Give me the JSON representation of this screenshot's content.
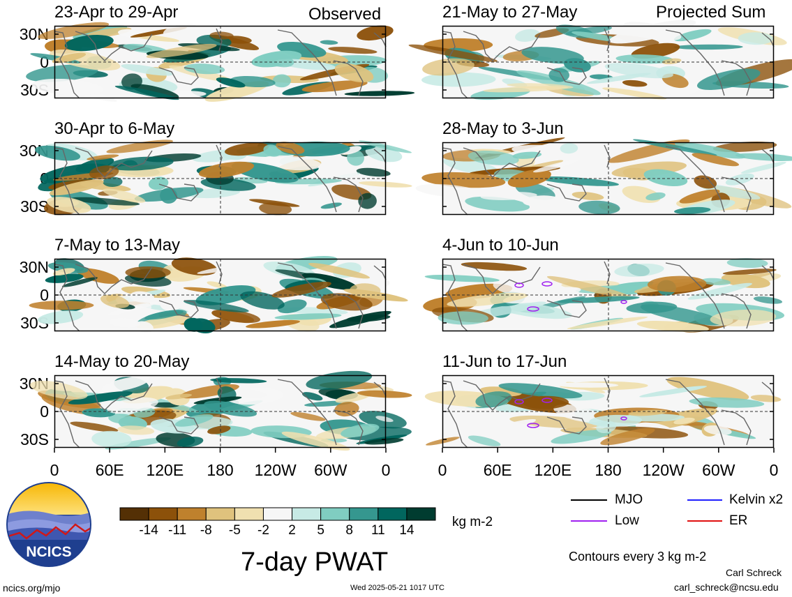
{
  "page": {
    "tags": {
      "left": "Observed",
      "right": "Projected Sum"
    },
    "lat_labels": [
      "30N",
      "0",
      "30S"
    ],
    "lon_labels": [
      "0",
      "60E",
      "120E",
      "180",
      "120W",
      "60W",
      "0"
    ],
    "title": "7-day PWAT",
    "units": "kg m-2",
    "contour_note": "Contours every 3 kg m-2",
    "footer_left": "ncics.org/mjo",
    "footer_center": "Wed 2025-05-21 1017 UTC",
    "author": "Carl Schreck",
    "email": "carl_schreck@ncsu.edu",
    "logo_text": "NCICS"
  },
  "legend": {
    "items": [
      {
        "label": "MJO",
        "color": "#000000"
      },
      {
        "label": "Kelvin x2",
        "color": "#1f1fff"
      },
      {
        "label": "Low",
        "color": "#a020f0"
      },
      {
        "label": "ER",
        "color": "#e01010"
      }
    ]
  },
  "chart_data": {
    "type": "heatmap",
    "variable": "7-day PWAT anomaly",
    "units": "kg m-2",
    "x_axis": {
      "ticks": [
        "0",
        "60E",
        "120E",
        "180",
        "120W",
        "60W",
        "0"
      ]
    },
    "y_axis": {
      "ticks": [
        "30N",
        "0",
        "30S"
      ]
    },
    "colorbar": {
      "labels": [
        "-14",
        "-11",
        "-8",
        "-5",
        "-2",
        "2",
        "5",
        "8",
        "11",
        "14"
      ],
      "colors": [
        "#543005",
        "#8c510a",
        "#bf812d",
        "#dfc27d",
        "#f0e0b0",
        "#f6f6f6",
        "#c7eae5",
        "#80cdc1",
        "#35978f",
        "#01665e",
        "#003c30"
      ]
    },
    "panels": [
      {
        "title": "23-Apr to 29-Apr",
        "column": "Observed",
        "seed": 11
      },
      {
        "title": "30-Apr to 6-May",
        "column": "Observed",
        "seed": 23
      },
      {
        "title": "7-May to 13-May",
        "column": "Observed",
        "seed": 37
      },
      {
        "title": "14-May to 20-May",
        "column": "Observed",
        "seed": 41
      },
      {
        "title": "21-May to 27-May",
        "column": "Projected Sum",
        "seed": 53
      },
      {
        "title": "28-May to 3-Jun",
        "column": "Projected Sum",
        "seed": 67
      },
      {
        "title": "4-Jun to 10-Jun",
        "column": "Projected Sum",
        "seed": 71
      },
      {
        "title": "11-Jun to 17-Jun",
        "column": "Projected Sum",
        "seed": 89
      }
    ]
  }
}
